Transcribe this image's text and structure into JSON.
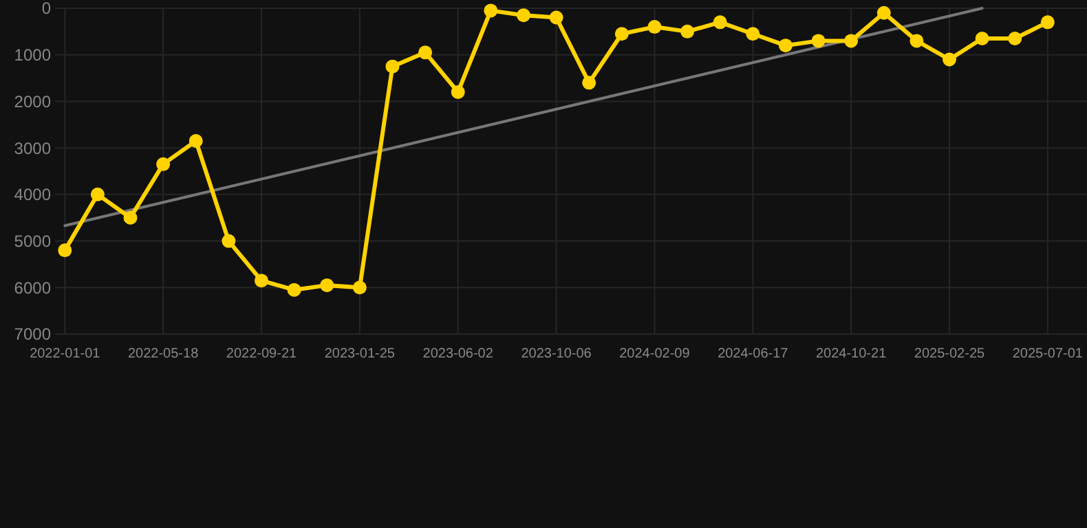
{
  "chart_data": {
    "type": "line",
    "ylim": [
      7000,
      0
    ],
    "categories": [
      "2022-01-01",
      null,
      null,
      "2022-05-18",
      null,
      null,
      "2022-09-21",
      null,
      null,
      "2023-01-25",
      null,
      null,
      "2023-06-02",
      null,
      null,
      "2023-10-06",
      null,
      null,
      "2024-02-09",
      null,
      null,
      "2024-06-17",
      null,
      null,
      "2024-10-21",
      null,
      null,
      "2025-02-25",
      null,
      null,
      "2025-07-01"
    ],
    "yticks": [
      0,
      1000,
      2000,
      3000,
      4000,
      5000,
      6000,
      7000
    ],
    "grid": true,
    "series": [
      {
        "color": "#ffd200",
        "marker": "circle",
        "values": [
          5200,
          4000,
          4500,
          3350,
          2850,
          5000,
          5850,
          6050,
          5950,
          6000,
          1250,
          950,
          1800,
          50,
          150,
          200,
          1600,
          550,
          400,
          500,
          300,
          550,
          800,
          700,
          700,
          100,
          700,
          1100,
          650,
          650,
          300
        ]
      },
      {
        "color": "#777777",
        "marker": "none",
        "values": [
          4670,
          null,
          null,
          null,
          null,
          null,
          null,
          null,
          null,
          null,
          null,
          null,
          null,
          null,
          null,
          null,
          null,
          null,
          null,
          null,
          null,
          null,
          null,
          null,
          null,
          null,
          null,
          null,
          0,
          null,
          null
        ]
      }
    ]
  }
}
